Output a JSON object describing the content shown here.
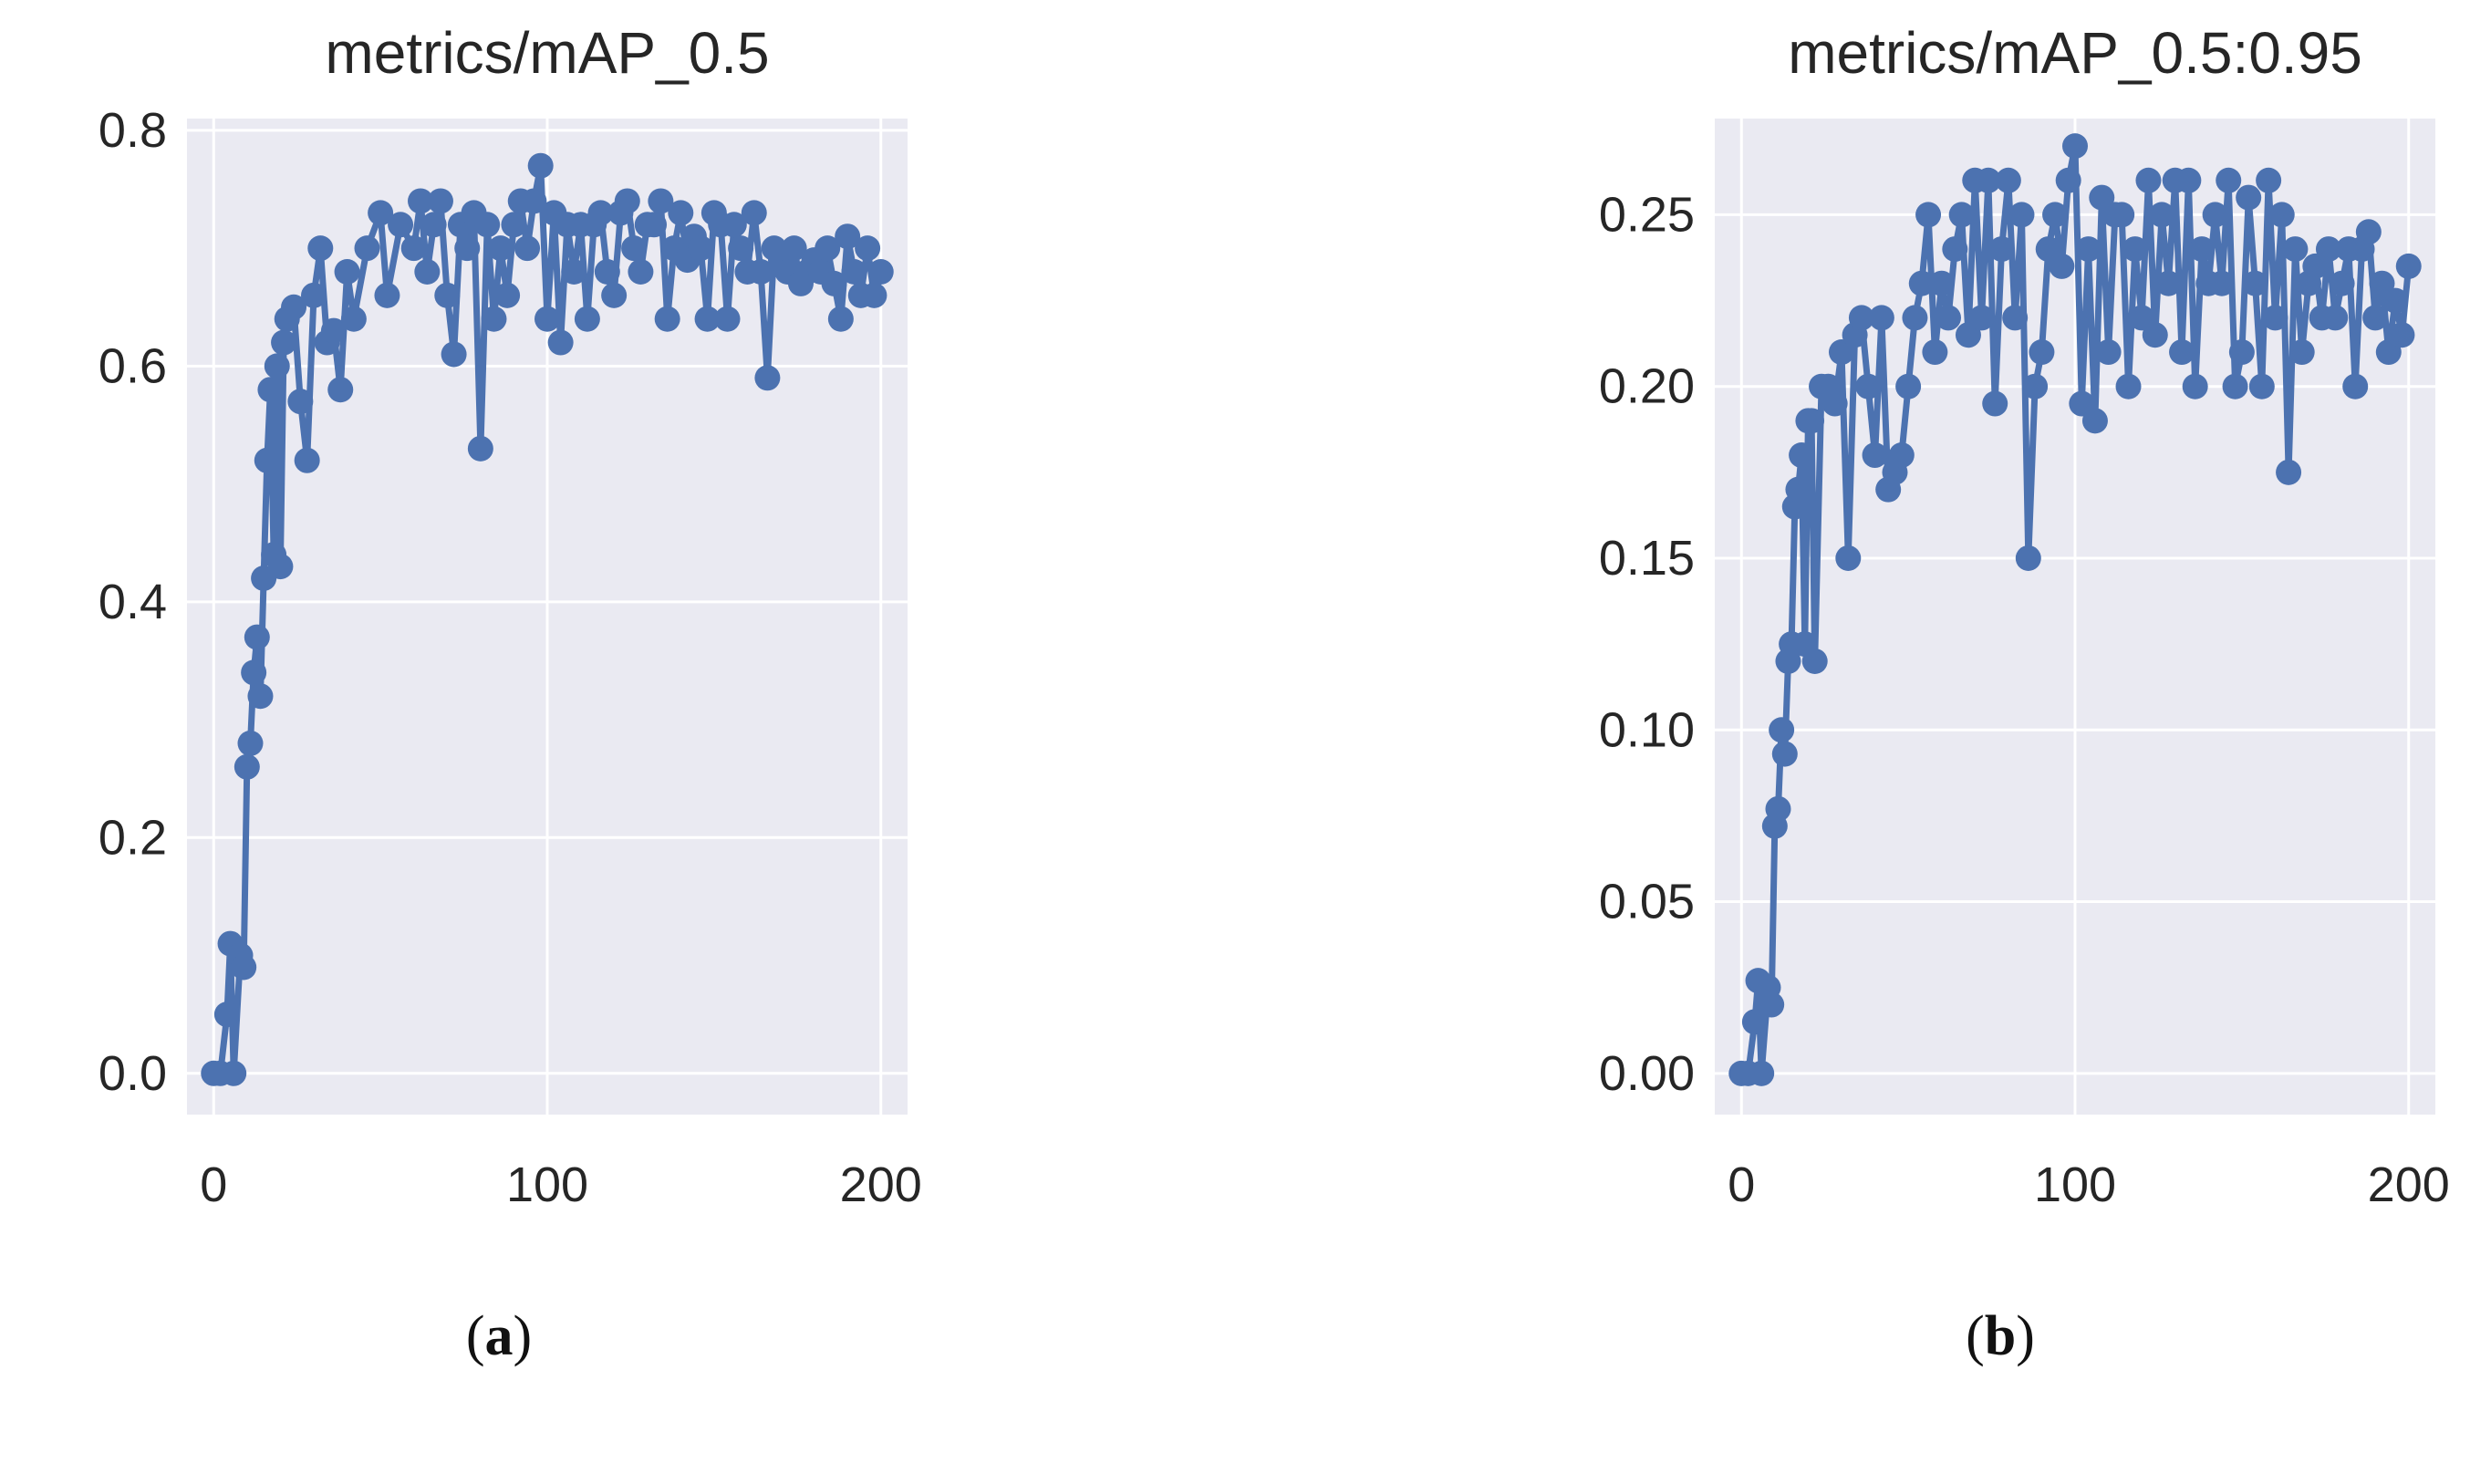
{
  "chart_data": [
    {
      "type": "line",
      "title": "metrics/mAP_0.5",
      "xlabel": "",
      "ylabel": "",
      "xlim": [
        -8,
        208
      ],
      "ylim": [
        -0.035,
        0.81
      ],
      "xticks": [
        0,
        100,
        200
      ],
      "yticks": [
        0.0,
        0.2,
        0.4,
        0.6,
        0.8
      ],
      "ytick_labels": [
        "0.0",
        "0.2",
        "0.4",
        "0.6",
        "0.8"
      ],
      "grid": true,
      "marker": "circle",
      "series": [
        {
          "x": [
            0,
            2,
            4,
            5,
            6,
            8,
            9,
            10,
            11,
            12,
            13,
            14,
            15,
            16,
            17,
            18,
            19,
            20,
            21,
            22,
            24,
            26,
            28,
            30,
            32,
            34,
            36,
            38,
            40,
            42,
            46,
            50,
            52,
            56,
            60,
            62,
            64,
            66,
            68,
            70,
            72,
            74,
            76,
            78,
            80,
            82,
            84,
            86,
            88,
            90,
            92,
            94,
            96,
            98,
            100,
            102,
            104,
            106,
            108,
            110,
            112,
            114,
            116,
            118,
            120,
            122,
            124,
            126,
            128,
            130,
            132,
            134,
            136,
            138,
            140,
            142,
            144,
            146,
            148,
            150,
            152,
            154,
            156,
            158,
            160,
            162,
            164,
            166,
            168,
            170,
            172,
            174,
            176,
            178,
            180,
            182,
            184,
            186,
            188,
            190,
            192,
            194,
            196,
            198,
            200
          ],
          "y": [
            0.0,
            0.0,
            0.05,
            0.11,
            0.0,
            0.1,
            0.09,
            0.26,
            0.28,
            0.34,
            0.37,
            0.32,
            0.42,
            0.52,
            0.58,
            0.44,
            0.6,
            0.43,
            0.62,
            0.64,
            0.65,
            0.57,
            0.52,
            0.66,
            0.7,
            0.62,
            0.63,
            0.58,
            0.68,
            0.64,
            0.7,
            0.73,
            0.66,
            0.72,
            0.7,
            0.74,
            0.68,
            0.72,
            0.74,
            0.66,
            0.61,
            0.72,
            0.7,
            0.73,
            0.53,
            0.72,
            0.64,
            0.7,
            0.66,
            0.72,
            0.74,
            0.7,
            0.74,
            0.77,
            0.64,
            0.73,
            0.62,
            0.72,
            0.68,
            0.72,
            0.64,
            0.72,
            0.73,
            0.68,
            0.66,
            0.73,
            0.74,
            0.7,
            0.68,
            0.72,
            0.72,
            0.74,
            0.64,
            0.7,
            0.73,
            0.69,
            0.71,
            0.7,
            0.64,
            0.73,
            0.72,
            0.64,
            0.72,
            0.7,
            0.68,
            0.73,
            0.68,
            0.59,
            0.7,
            0.69,
            0.68,
            0.7,
            0.67,
            0.68,
            0.69,
            0.68,
            0.7,
            0.67,
            0.64,
            0.71,
            0.68,
            0.66,
            0.7,
            0.66,
            0.68
          ]
        }
      ]
    },
    {
      "type": "line",
      "title": "metrics/mAP_0.5:0.95",
      "xlabel": "",
      "ylabel": "",
      "xlim": [
        -8,
        208
      ],
      "ylim": [
        -0.012,
        0.278
      ],
      "xticks": [
        0,
        100,
        200
      ],
      "yticks": [
        0.0,
        0.05,
        0.1,
        0.15,
        0.2,
        0.25
      ],
      "ytick_labels": [
        "0.00",
        "0.05",
        "0.10",
        "0.15",
        "0.20",
        "0.25"
      ],
      "grid": true,
      "marker": "circle",
      "series": [
        {
          "x": [
            0,
            2,
            4,
            5,
            6,
            8,
            9,
            10,
            11,
            12,
            13,
            14,
            15,
            16,
            17,
            18,
            19,
            20,
            21,
            22,
            24,
            26,
            28,
            30,
            32,
            34,
            36,
            38,
            40,
            42,
            44,
            46,
            48,
            50,
            52,
            54,
            56,
            58,
            60,
            62,
            64,
            66,
            68,
            70,
            72,
            74,
            76,
            78,
            80,
            82,
            84,
            86,
            88,
            90,
            92,
            94,
            96,
            98,
            100,
            102,
            104,
            106,
            108,
            110,
            112,
            114,
            116,
            118,
            120,
            122,
            124,
            126,
            128,
            130,
            132,
            134,
            136,
            138,
            140,
            142,
            144,
            146,
            148,
            150,
            152,
            154,
            156,
            158,
            160,
            162,
            164,
            166,
            168,
            170,
            172,
            174,
            176,
            178,
            180,
            182,
            184,
            186,
            188,
            190,
            192,
            194,
            196,
            198,
            200
          ],
          "y": [
            0.0,
            0.0,
            0.015,
            0.027,
            0.0,
            0.025,
            0.02,
            0.072,
            0.077,
            0.1,
            0.093,
            0.12,
            0.125,
            0.165,
            0.17,
            0.18,
            0.125,
            0.19,
            0.19,
            0.12,
            0.2,
            0.2,
            0.195,
            0.21,
            0.15,
            0.215,
            0.22,
            0.2,
            0.18,
            0.22,
            0.17,
            0.175,
            0.18,
            0.2,
            0.22,
            0.23,
            0.25,
            0.21,
            0.23,
            0.22,
            0.24,
            0.25,
            0.215,
            0.26,
            0.22,
            0.26,
            0.195,
            0.24,
            0.26,
            0.22,
            0.25,
            0.15,
            0.2,
            0.21,
            0.24,
            0.25,
            0.235,
            0.26,
            0.27,
            0.195,
            0.24,
            0.19,
            0.255,
            0.21,
            0.25,
            0.25,
            0.2,
            0.24,
            0.22,
            0.26,
            0.215,
            0.25,
            0.23,
            0.26,
            0.21,
            0.26,
            0.2,
            0.24,
            0.23,
            0.25,
            0.23,
            0.26,
            0.2,
            0.21,
            0.255,
            0.23,
            0.2,
            0.26,
            0.22,
            0.25,
            0.175,
            0.24,
            0.21,
            0.23,
            0.235,
            0.22,
            0.24,
            0.22,
            0.23,
            0.24,
            0.2,
            0.24,
            0.245,
            0.22,
            0.23,
            0.21,
            0.225,
            0.215,
            0.235
          ]
        }
      ]
    }
  ],
  "style": {
    "plot_bg": "#eaeaf2",
    "grid_color": "#ffffff",
    "line_color": "#4c72b0"
  },
  "captions": {
    "a": "a",
    "b": "b"
  }
}
